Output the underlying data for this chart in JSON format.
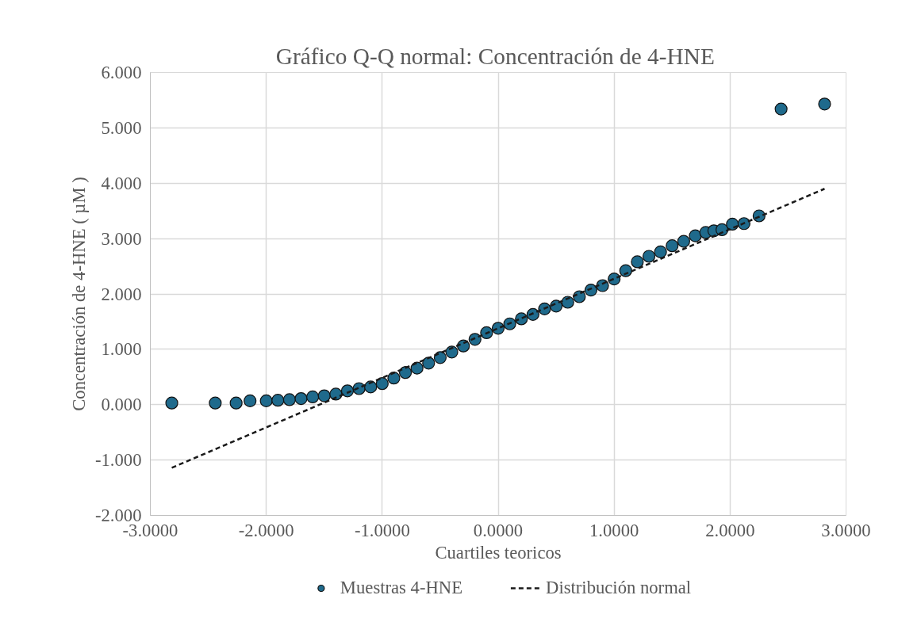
{
  "chart_data": {
    "type": "scatter",
    "title": "Gráfico  Q-Q normal: Concentración de 4-HNE",
    "xlabel": "Cuartiles teoricos",
    "ylabel": "Concentración de 4-HNE ( µM )",
    "xlim": [
      -3,
      3
    ],
    "ylim": [
      -2,
      6
    ],
    "xticks": [
      {
        "value": -3,
        "label": "-3.0000"
      },
      {
        "value": -2,
        "label": "-2.0000"
      },
      {
        "value": -1,
        "label": "-1.0000"
      },
      {
        "value": 0,
        "label": "0.0000"
      },
      {
        "value": 1,
        "label": "1.0000"
      },
      {
        "value": 2,
        "label": "2.0000"
      },
      {
        "value": 3,
        "label": "3.0000"
      }
    ],
    "yticks": [
      {
        "value": -2,
        "label": "-2.000"
      },
      {
        "value": -1,
        "label": "-1.000"
      },
      {
        "value": 0,
        "label": "0.000"
      },
      {
        "value": 1,
        "label": "1.000"
      },
      {
        "value": 2,
        "label": "2.000"
      },
      {
        "value": 3,
        "label": "3.000"
      },
      {
        "value": 4,
        "label": "4.000"
      },
      {
        "value": 5,
        "label": "5.000"
      },
      {
        "value": 6,
        "label": "6.000"
      }
    ],
    "grid": true,
    "legend": "bottom",
    "series": [
      {
        "name": "Muestras 4-HNE",
        "type": "scatter",
        "marker": "circle",
        "color": "#1f6a8c",
        "x": [
          -2.815,
          -2.44,
          -2.26,
          -2.14,
          -2.0,
          -1.9,
          -1.8,
          -1.7,
          -1.6,
          -1.5,
          -1.4,
          -1.3,
          -1.2,
          -1.1,
          -1.0,
          -0.9,
          -0.8,
          -0.7,
          -0.6,
          -0.5,
          -0.4,
          -0.3,
          -0.2,
          -0.1,
          0.0,
          0.1,
          0.2,
          0.3,
          0.4,
          0.5,
          0.6,
          0.7,
          0.8,
          0.9,
          1.0,
          1.1,
          1.2,
          1.3,
          1.4,
          1.5,
          1.6,
          1.7,
          1.79,
          1.86,
          1.93,
          2.02,
          2.12,
          2.25,
          2.44,
          2.815
        ],
        "values": [
          0.03,
          0.03,
          0.03,
          0.07,
          0.07,
          0.08,
          0.09,
          0.11,
          0.14,
          0.16,
          0.19,
          0.25,
          0.29,
          0.32,
          0.38,
          0.48,
          0.58,
          0.66,
          0.75,
          0.85,
          0.95,
          1.06,
          1.18,
          1.3,
          1.38,
          1.46,
          1.55,
          1.63,
          1.73,
          1.78,
          1.85,
          1.95,
          2.07,
          2.15,
          2.27,
          2.42,
          2.58,
          2.68,
          2.76,
          2.87,
          2.95,
          3.05,
          3.11,
          3.14,
          3.16,
          3.26,
          3.27,
          3.41,
          5.34,
          5.43
        ]
      },
      {
        "name": "Distribución normal",
        "type": "line",
        "line_style": "dashed",
        "color": "#1a1a1a",
        "x": [
          -2.815,
          2.815
        ],
        "values": [
          -1.14,
          3.9
        ]
      }
    ]
  }
}
